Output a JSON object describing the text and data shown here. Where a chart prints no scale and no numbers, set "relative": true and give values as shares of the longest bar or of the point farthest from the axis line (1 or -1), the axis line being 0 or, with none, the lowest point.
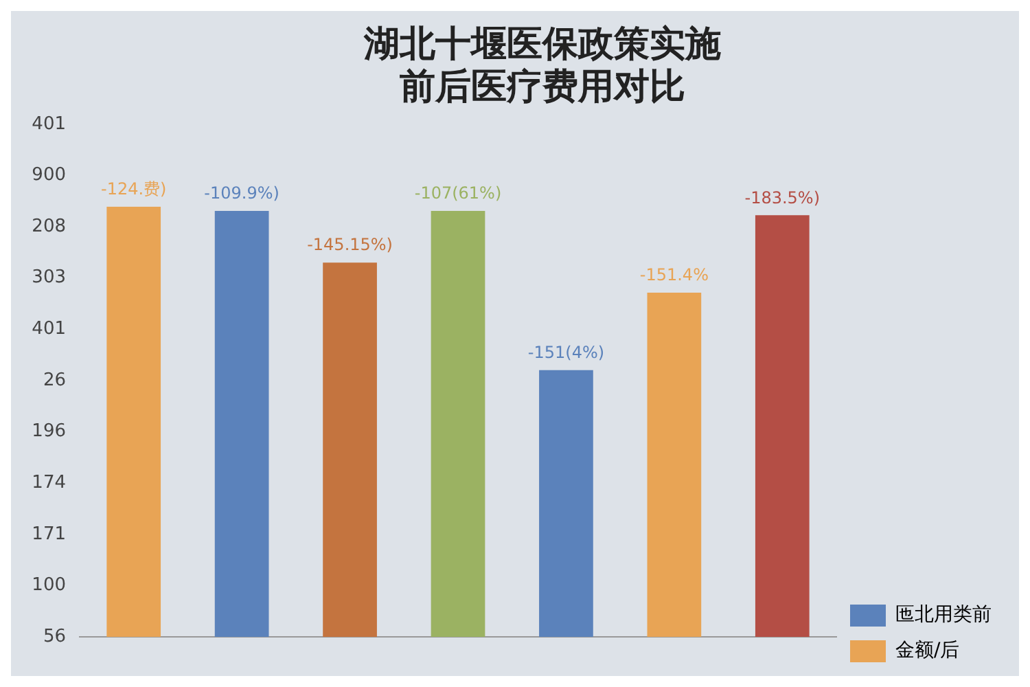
{
  "chart_data": {
    "type": "bar",
    "title": "湖北十堰医保政策实施前后医疗费用对比",
    "categories": [
      null,
      null,
      null,
      null,
      null,
      null,
      null
    ],
    "relative": true,
    "series": [
      {
        "name": "匜北用类前",
        "color": "#5b82bb",
        "colors": [
          "#e8a455",
          "#5b82bb",
          "#c4743f",
          "#9bb262",
          "#5b82bb",
          "#e8a455",
          "#b44e45"
        ],
        "values": [
          1,
          0.99,
          0.87,
          0.99,
          0.62,
          0.8,
          0.98
        ]
      }
    ],
    "annotations": [
      "-124.费)",
      "-109.9%)",
      "-145.15%)",
      "-107(61%)",
      "-151(4%)",
      "-151.4%",
      "-183.5%)",
      "401",
      "900",
      "208",
      "303",
      "401",
      "26",
      "196",
      "174",
      "171",
      "100",
      "56",
      "金额/后"
    ],
    "grid": false,
    "legend": "bottom right"
  }
}
